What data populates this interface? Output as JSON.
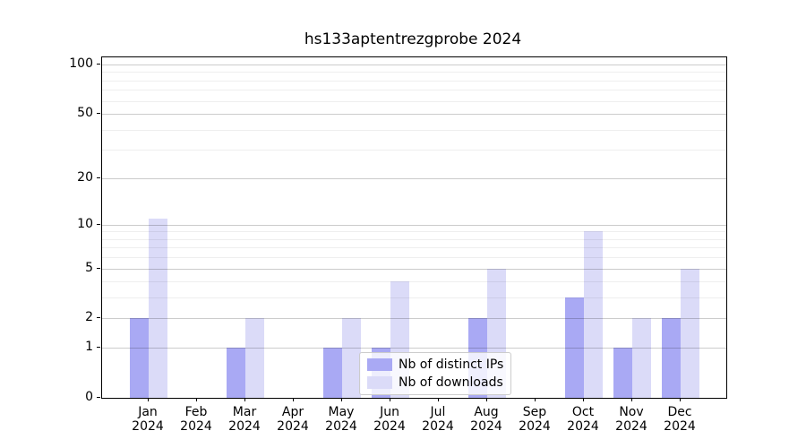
{
  "chart_data": {
    "type": "bar",
    "title": "hs133aptentrezgprobe 2024",
    "year": "2024",
    "categories": [
      "Jan",
      "Feb",
      "Mar",
      "Apr",
      "May",
      "Jun",
      "Jul",
      "Aug",
      "Sep",
      "Oct",
      "Nov",
      "Dec"
    ],
    "series": [
      {
        "name": "Nb of distinct IPs",
        "color": "#a9a9f4",
        "values": [
          2,
          0,
          1,
          0,
          1,
          1,
          0,
          2,
          0,
          3,
          1,
          2
        ]
      },
      {
        "name": "Nb of downloads",
        "color": "#dbdbf8",
        "values": [
          11,
          0,
          2,
          0,
          2,
          4,
          0,
          5,
          0,
          9,
          2,
          5
        ]
      }
    ],
    "xlabel": "",
    "ylabel": "",
    "y_scale": "log1p",
    "ylim": [
      0,
      110
    ],
    "y_ticks": [
      0,
      1,
      2,
      5,
      10,
      20,
      50,
      100
    ],
    "y_minor_ticks": [
      3,
      4,
      6,
      7,
      8,
      9,
      30,
      40,
      60,
      70,
      80,
      90
    ],
    "grid": "horizontal-on-top",
    "legend_position": "lower center"
  },
  "colors": {
    "axis": "#000000",
    "grid_major": "rgba(0,0,0,0.20)",
    "grid_minor": "rgba(0,0,0,0.065)",
    "legend_border": "#cccccc",
    "legend_background": "rgba(255,255,255,0.8)"
  }
}
